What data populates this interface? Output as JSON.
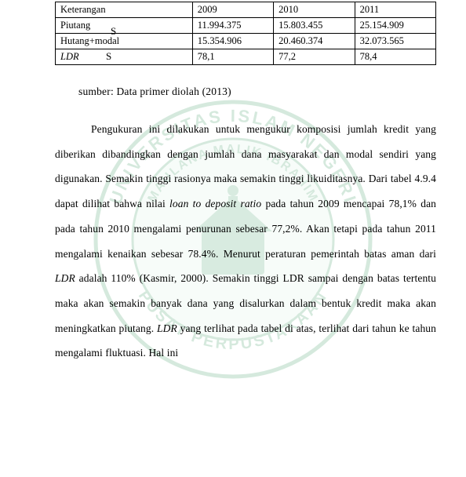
{
  "watermark": {
    "outer_color": "#1e8a4a",
    "inner_color": "#dff3e6",
    "text_top": "UNIVERSITAS ISLAM NEGERI",
    "text_side_left": "MALANG",
    "text_side_right": "MAULANA MALIK IBRAHIM",
    "text_bottom": "PUSAT PERPUSTAKAAN"
  },
  "table": {
    "header": {
      "label": "Keterangan",
      "y2009": "2009",
      "y2010": "2010",
      "y2011": "2011"
    },
    "rows": [
      {
        "label": "Piutang",
        "y2009": "11.994.375",
        "y2010": "15.803.455",
        "y2011": "25.154.909"
      },
      {
        "label": "Hutang+modal",
        "y2009": "15.354.906",
        "y2010": "20.460.374",
        "y2011": "32.073.565"
      },
      {
        "label": "LDR",
        "label_italic": true,
        "y2009": "78,1",
        "y2010": "77,2",
        "y2011": "78,4"
      }
    ]
  },
  "source_text": "sumber: Data primer diolah (2013)",
  "paragraph_html": "Pengukuran ini dilakukan untuk mengukur komposisi jumlah kredit yang diberikan dibandingkan dengan jumlah dana masyarakat dan modal sendiri yang digunakan. Semakin tinggi rasionya maka semakin tinggi likuiditasnya. Dari tabel 4.9.4 dapat dilihat bahwa nilai <i>loan to deposit ratio</i> pada tahun 2009 mencapai 78,1% dan pada tahun 2010 mengalami penurunan sebesar 77,2%. Akan tetapi pada tahun 2011 mengalami kenaikan sebesar 78.4%. Menurut peraturan pemerintah batas aman dari <i>LDR</i> adalah 110% (Kasmir, 2000). Semakin tinggi LDR sampai dengan batas tertentu maka akan semakin banyak dana yang disalurkan dalam bentuk kredit maka akan meningkatkan piutang. <i>LDR</i> yang terlihat pada tabel di atas, terlihat dari tahun ke tahun mengalami fluktuasi. Hal ini",
  "artifacts": {
    "s1": "S",
    "s2": "S"
  }
}
